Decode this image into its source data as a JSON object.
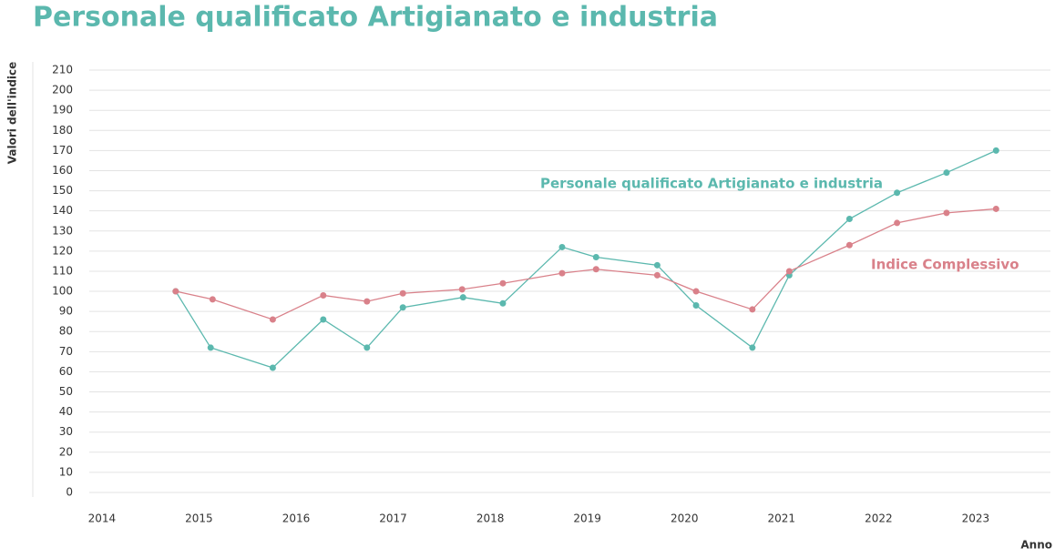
{
  "chart_data": {
    "type": "line",
    "title": "Personale qualificato Artigianato e industria",
    "x_label": "Anno",
    "y_label": "Valori dell'indice",
    "xlim": [
      2013.87,
      2023.77
    ],
    "xticks": [
      2014,
      2015,
      2016,
      2017,
      2018,
      2019,
      2020,
      2021,
      2022,
      2023
    ],
    "ylim": [
      0,
      210
    ],
    "yticks": [
      0,
      10,
      20,
      30,
      40,
      50,
      60,
      70,
      80,
      90,
      100,
      110,
      120,
      130,
      140,
      150,
      160,
      170,
      180,
      190,
      200,
      210
    ],
    "grid": true,
    "series": [
      {
        "name": "Personale qualificato Artigianato e industria",
        "color": "#5bb8ae",
        "x": [
          2014.76,
          2015.12,
          2015.76,
          2016.28,
          2016.73,
          2017.1,
          2017.72,
          2018.13,
          2018.74,
          2019.09,
          2019.72,
          2020.12,
          2020.7,
          2021.08,
          2021.7,
          2022.19,
          2022.7,
          2023.21
        ],
        "values": [
          100,
          72,
          62,
          86,
          72,
          92,
          97,
          94,
          122,
          117,
          113,
          93,
          72,
          108,
          136,
          149,
          159,
          170
        ]
      },
      {
        "name": "Indice Complessivo",
        "color": "#d9818a",
        "x": [
          2014.76,
          2015.14,
          2015.76,
          2016.28,
          2016.73,
          2017.1,
          2017.71,
          2018.13,
          2018.74,
          2019.09,
          2019.72,
          2020.12,
          2020.7,
          2021.08,
          2021.7,
          2022.19,
          2022.7,
          2023.21
        ],
        "values": [
          100,
          96,
          86,
          98,
          95,
          99,
          101,
          104,
          109,
          111,
          108,
          100,
          91,
          110,
          123,
          134,
          139,
          141
        ]
      }
    ]
  }
}
